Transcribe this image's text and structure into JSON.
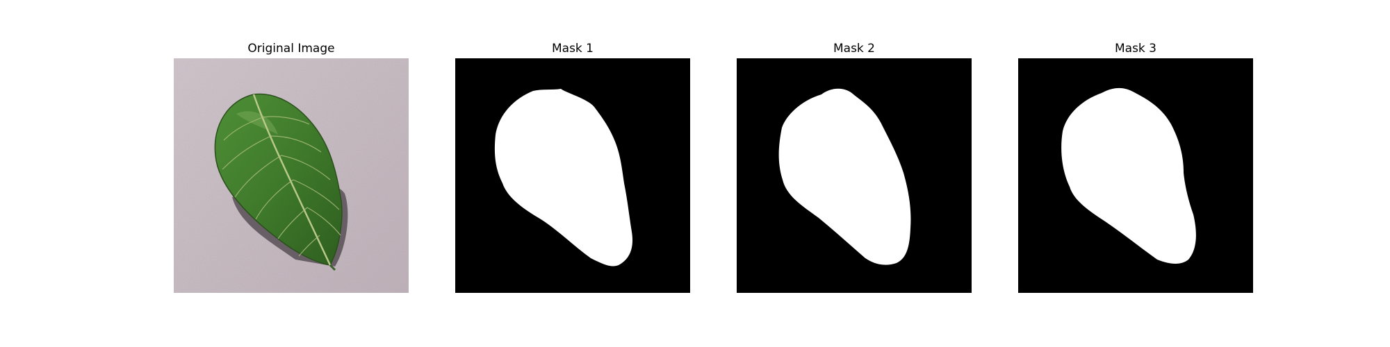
{
  "figure": {
    "background": "#ffffff",
    "panels": [
      {
        "title": "Original Image",
        "kind": "photo",
        "subject": "leaf-photo"
      },
      {
        "title": "Mask 1",
        "kind": "mask"
      },
      {
        "title": "Mask 2",
        "kind": "mask"
      },
      {
        "title": "Mask 3",
        "kind": "mask"
      }
    ]
  },
  "colors": {
    "mask_background": "#000000",
    "mask_foreground": "#ffffff",
    "photo_background": "#c9bcc3",
    "leaf_green": "#3f7a2b",
    "leaf_vein": "#b9c98a",
    "leaf_shadow": "#4a4248"
  }
}
